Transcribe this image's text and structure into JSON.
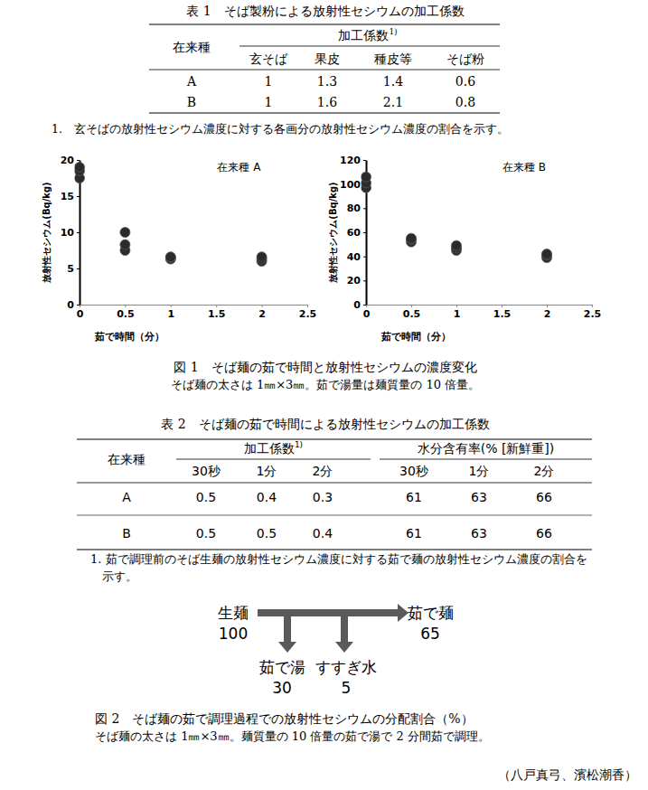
{
  "table1": {
    "title": "表 1　そば製粉による放射性セシウムの加工係数",
    "row_header": "在来種",
    "group_header": "加工係数",
    "group_note": "1)",
    "columns": [
      "玄そば",
      "果皮",
      "種皮等",
      "そば粉"
    ],
    "rows": [
      {
        "label": "A",
        "values": [
          1,
          1.3,
          1.4,
          0.6
        ]
      },
      {
        "label": "B",
        "values": [
          1,
          1.6,
          2.1,
          0.8
        ]
      }
    ],
    "footnote": "1.　玄そばの放射性セシウム濃度に対する各画分の放射性セシウム濃度の割合を示す。"
  },
  "chart_data": [
    {
      "type": "scatter",
      "title": "在来種 A",
      "x_label": "茹で時間（分）",
      "y_label": "放射性セシウム(Bq/kg)",
      "x": [
        0,
        0,
        0,
        0.5,
        0.5,
        0.5,
        1,
        1,
        1,
        2,
        2,
        2
      ],
      "values": [
        17.5,
        18.5,
        19,
        7.5,
        8.3,
        10,
        6.3,
        6.5,
        6.6,
        6.0,
        6.3,
        6.6
      ],
      "color": "#2b2b2b",
      "marker": "circle",
      "xlim": [
        0,
        2.5
      ],
      "xticks": [
        0,
        0.5,
        1,
        1.5,
        2,
        2.5
      ],
      "ylim": [
        0,
        20
      ],
      "yticks": [
        0,
        5,
        10,
        15,
        20
      ],
      "grid": false
    },
    {
      "type": "scatter",
      "title": "在来種 B",
      "x_label": "茹で時間（分）",
      "y_label": "放射性セシウム(Bq/kg)",
      "x": [
        0,
        0,
        0,
        0.5,
        0.5,
        0.5,
        1,
        1,
        1,
        2,
        2,
        2
      ],
      "values": [
        97,
        101,
        106,
        52,
        54,
        55,
        45,
        47,
        49,
        39,
        41,
        42
      ],
      "color": "#2b2b2b",
      "marker": "circle",
      "xlim": [
        0,
        2.5
      ],
      "xticks": [
        0,
        0.5,
        1,
        1.5,
        2,
        2.5
      ],
      "ylim": [
        0,
        120
      ],
      "yticks": [
        0,
        20,
        40,
        60,
        80,
        100,
        120
      ],
      "grid": false
    }
  ],
  "figure1": {
    "caption": [
      "図 1　そば麺の茹で時間と放射性セシウムの濃度変化",
      "そば麺の太さは 1㎜×3㎜。茹で湯量は麺質量の 10 倍量。"
    ]
  },
  "table2": {
    "title": "表 2　そば麺の茹で時間による放射性セシウムの加工係数",
    "row_header": "在来種",
    "groups": [
      {
        "label": "加工係数",
        "note": "1)",
        "columns": [
          "30秒",
          "1分",
          "2分"
        ]
      },
      {
        "label": "水分含有率(% [新鮮重])",
        "columns": [
          "30秒",
          "1分",
          "2分"
        ]
      }
    ],
    "rows": [
      {
        "label": "A",
        "values": [
          0.5,
          0.4,
          0.3,
          61,
          63,
          66
        ]
      },
      {
        "label": "B",
        "values": [
          0.5,
          0.5,
          0.4,
          61,
          63,
          66
        ]
      }
    ],
    "footnote": "1. 茹で調理前のそば生麺の放射性セシウム濃度に対する茹で麺の放射性セシウム濃度の割合を示す。"
  },
  "figure2": {
    "nodes": [
      {
        "label": "生麺",
        "value": 100
      },
      {
        "label": "茹で麺",
        "value": 65
      },
      {
        "label": "茹で湯",
        "value": 30
      },
      {
        "label": "すすぎ水",
        "value": 5
      }
    ],
    "caption": [
      "図 2　そば麺の茹で調理過程での放射性セシウムの分配割合（%）",
      "そば麺の太さは 1㎜×3㎜。麺質量の 10 倍量の茹で湯で 2 分間茹で調理。"
    ]
  },
  "credit": "（八戸真弓、濱松潮香）"
}
